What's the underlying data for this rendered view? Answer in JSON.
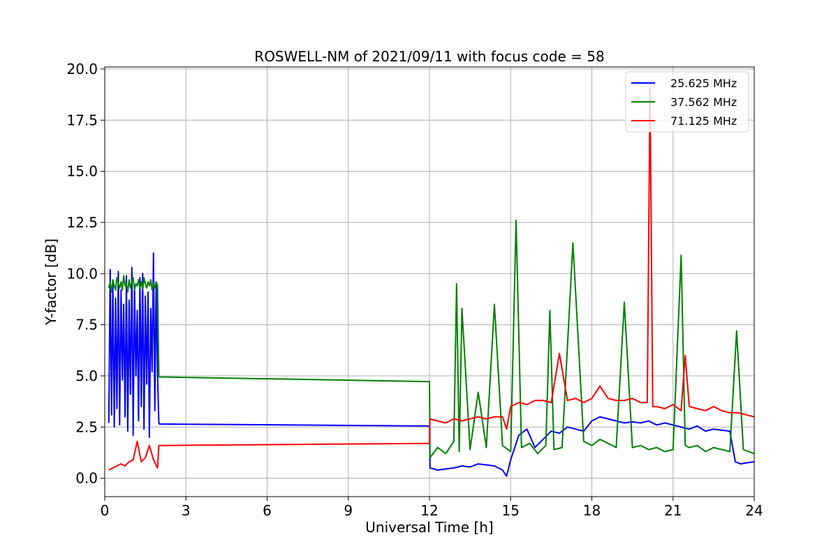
{
  "chart_data": {
    "type": "line",
    "title": "ROSWELL-NM of 2021/09/11 with focus code = 58",
    "xlabel": "Universal Time [h]",
    "ylabel": "Y-factor [dB]",
    "xlim": [
      0,
      24
    ],
    "ylim": [
      -0.9,
      20.1
    ],
    "xticks": [
      0,
      3,
      6,
      9,
      12,
      15,
      18,
      21,
      24
    ],
    "xtick_labels": [
      "0",
      "3",
      "6",
      "9",
      "12",
      "15",
      "18",
      "21",
      "24"
    ],
    "yticks": [
      0.0,
      2.5,
      5.0,
      7.5,
      10.0,
      12.5,
      15.0,
      17.5,
      20.0
    ],
    "ytick_labels": [
      "0.0",
      "2.5",
      "5.0",
      "7.5",
      "10.0",
      "12.5",
      "15.0",
      "17.5",
      "20.0"
    ],
    "grid": true,
    "legend_position": "top-right",
    "series": [
      {
        "name": "25.625 MHz",
        "color": "#0000ff",
        "x": [
          0.15,
          0.2,
          0.25,
          0.3,
          0.35,
          0.4,
          0.45,
          0.5,
          0.55,
          0.6,
          0.65,
          0.7,
          0.75,
          0.8,
          0.85,
          0.9,
          0.95,
          1.0,
          1.05,
          1.1,
          1.15,
          1.2,
          1.25,
          1.3,
          1.35,
          1.4,
          1.45,
          1.5,
          1.55,
          1.6,
          1.65,
          1.7,
          1.75,
          1.8,
          1.85,
          1.9,
          1.95,
          2.0,
          2.02,
          12.0,
          12.02,
          12.3,
          12.6,
          12.9,
          13.2,
          13.5,
          13.8,
          14.1,
          14.4,
          14.7,
          14.85,
          15.0,
          15.3,
          15.6,
          15.9,
          16.2,
          16.5,
          16.8,
          17.1,
          17.4,
          17.7,
          18.0,
          18.3,
          18.6,
          18.9,
          19.2,
          19.5,
          19.8,
          20.1,
          20.4,
          20.7,
          21.0,
          21.3,
          21.6,
          21.9,
          22.2,
          22.5,
          22.8,
          23.1,
          23.3,
          23.5,
          23.7,
          24.0
        ],
        "values": [
          2.7,
          10.2,
          3.1,
          9.5,
          2.5,
          8.8,
          3.4,
          10.1,
          2.6,
          9.2,
          4.8,
          8.5,
          3.0,
          9.9,
          2.3,
          8.7,
          4.1,
          10.3,
          2.1,
          9.4,
          5.0,
          8.2,
          2.8,
          9.8,
          3.5,
          10.0,
          2.4,
          8.9,
          4.6,
          9.1,
          2.0,
          8.3,
          5.2,
          11.0,
          3.3,
          9.6,
          5.0,
          2.7,
          2.65,
          2.55,
          0.5,
          0.4,
          0.45,
          0.5,
          0.6,
          0.55,
          0.7,
          0.65,
          0.6,
          0.4,
          0.1,
          0.9,
          2.1,
          2.4,
          1.5,
          1.9,
          2.3,
          2.2,
          2.5,
          2.4,
          2.3,
          2.8,
          3.0,
          2.9,
          2.8,
          2.7,
          2.75,
          2.7,
          2.8,
          2.6,
          2.7,
          2.6,
          2.5,
          2.4,
          2.55,
          2.3,
          2.4,
          2.35,
          2.3,
          0.8,
          0.7,
          0.75,
          0.8
        ]
      },
      {
        "name": "37.562 MHz",
        "color": "#008000",
        "x": [
          0.15,
          0.2,
          0.25,
          0.3,
          0.35,
          0.4,
          0.45,
          0.5,
          0.55,
          0.6,
          0.65,
          0.7,
          0.75,
          0.8,
          0.85,
          0.9,
          0.95,
          1.0,
          1.05,
          1.1,
          1.15,
          1.2,
          1.25,
          1.3,
          1.35,
          1.4,
          1.45,
          1.5,
          1.55,
          1.6,
          1.65,
          1.7,
          1.75,
          1.8,
          1.85,
          1.9,
          1.95,
          2.0,
          2.02,
          12.0,
          12.02,
          12.3,
          12.6,
          12.9,
          13.0,
          13.1,
          13.2,
          13.5,
          13.8,
          14.1,
          14.4,
          14.7,
          15.0,
          15.2,
          15.4,
          15.7,
          16.0,
          16.3,
          16.45,
          16.6,
          16.9,
          17.3,
          17.7,
          18.0,
          18.3,
          18.6,
          18.9,
          19.2,
          19.5,
          19.8,
          20.1,
          20.4,
          20.7,
          21.0,
          21.3,
          21.45,
          21.6,
          21.9,
          22.2,
          22.5,
          22.8,
          23.1,
          23.35,
          23.6,
          24.0
        ],
        "values": [
          9.3,
          9.6,
          9.1,
          9.7,
          9.4,
          9.2,
          9.8,
          9.5,
          9.3,
          9.6,
          9.2,
          9.9,
          9.4,
          9.5,
          9.1,
          9.7,
          9.3,
          9.6,
          9.8,
          9.2,
          9.5,
          9.4,
          9.7,
          9.3,
          9.6,
          9.2,
          9.8,
          9.5,
          9.3,
          9.6,
          9.4,
          9.7,
          9.2,
          9.5,
          9.3,
          9.6,
          9.4,
          4.95,
          4.95,
          4.72,
          1.0,
          1.5,
          1.2,
          1.8,
          9.5,
          1.3,
          8.3,
          1.4,
          4.2,
          1.5,
          8.5,
          1.6,
          1.3,
          12.6,
          1.5,
          1.7,
          1.2,
          1.6,
          8.2,
          1.4,
          1.5,
          11.5,
          1.8,
          1.6,
          1.9,
          1.7,
          1.5,
          8.6,
          1.5,
          1.6,
          1.4,
          1.5,
          1.3,
          1.4,
          10.9,
          1.6,
          1.5,
          1.6,
          1.3,
          1.5,
          1.4,
          1.3,
          7.2,
          1.4,
          1.2
        ]
      },
      {
        "name": "71.125 MHz",
        "color": "#ff0000",
        "x": [
          0.15,
          0.3,
          0.45,
          0.6,
          0.75,
          0.9,
          1.05,
          1.2,
          1.35,
          1.5,
          1.65,
          1.8,
          1.95,
          2.0,
          2.02,
          12.0,
          12.02,
          12.3,
          12.6,
          12.9,
          13.2,
          13.5,
          13.8,
          14.1,
          14.4,
          14.7,
          14.85,
          15.0,
          15.3,
          15.6,
          15.9,
          16.2,
          16.5,
          16.8,
          17.1,
          17.4,
          17.7,
          18.0,
          18.3,
          18.6,
          18.9,
          19.2,
          19.5,
          19.8,
          20.05,
          20.15,
          20.25,
          20.4,
          20.7,
          21.0,
          21.3,
          21.45,
          21.6,
          21.9,
          22.2,
          22.5,
          22.8,
          23.1,
          23.4,
          23.7,
          24.0
        ],
        "values": [
          0.4,
          0.5,
          0.6,
          0.7,
          0.6,
          0.8,
          0.9,
          1.8,
          0.8,
          1.0,
          1.6,
          0.9,
          0.5,
          1.6,
          1.6,
          1.7,
          2.9,
          2.8,
          2.7,
          2.9,
          2.8,
          2.9,
          3.0,
          2.9,
          3.0,
          3.0,
          2.4,
          3.5,
          3.7,
          3.6,
          3.8,
          3.8,
          3.7,
          6.1,
          3.8,
          3.9,
          3.7,
          3.9,
          4.5,
          3.9,
          3.8,
          3.8,
          3.9,
          3.7,
          3.7,
          19.1,
          3.5,
          3.5,
          3.4,
          3.6,
          3.3,
          6.0,
          3.5,
          3.4,
          3.3,
          3.5,
          3.3,
          3.2,
          3.2,
          3.1,
          3.0
        ]
      }
    ]
  }
}
